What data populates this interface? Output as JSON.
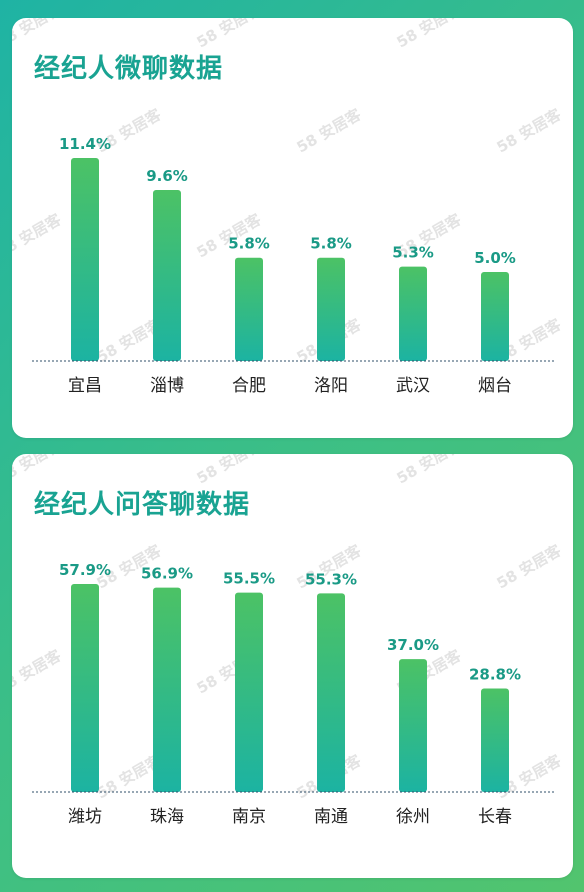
{
  "chart_data": [
    {
      "type": "bar",
      "title": "经纪人微聊数据",
      "categories": [
        "宜昌",
        "淄博",
        "合肥",
        "洛阳",
        "武汉",
        "烟台"
      ],
      "values": [
        11.4,
        9.6,
        5.8,
        5.8,
        5.3,
        5.0
      ],
      "value_labels": [
        "11.4%",
        "9.6%",
        "5.8%",
        "5.8%",
        "5.3%",
        "5.0%"
      ],
      "ylim": [
        0,
        11.4
      ],
      "grid": false,
      "colors": {
        "bar_top": "#4cc265",
        "bar_bottom": "#1cb3a2",
        "value_text": "#1a9a86"
      }
    },
    {
      "type": "bar",
      "title": "经纪人问答聊数据",
      "categories": [
        "潍坊",
        "珠海",
        "南京",
        "南通",
        "徐州",
        "长春"
      ],
      "values": [
        57.9,
        56.9,
        55.5,
        55.3,
        37.0,
        28.8
      ],
      "value_labels": [
        "57.9%",
        "56.9%",
        "55.5%",
        "55.3%",
        "37.0%",
        "28.8%"
      ],
      "ylim": [
        0,
        57.9
      ],
      "grid": false,
      "colors": {
        "bar_top": "#4cc265",
        "bar_bottom": "#1cb3a2",
        "value_text": "#1a9a86"
      }
    }
  ],
  "watermark": "58 安居客"
}
